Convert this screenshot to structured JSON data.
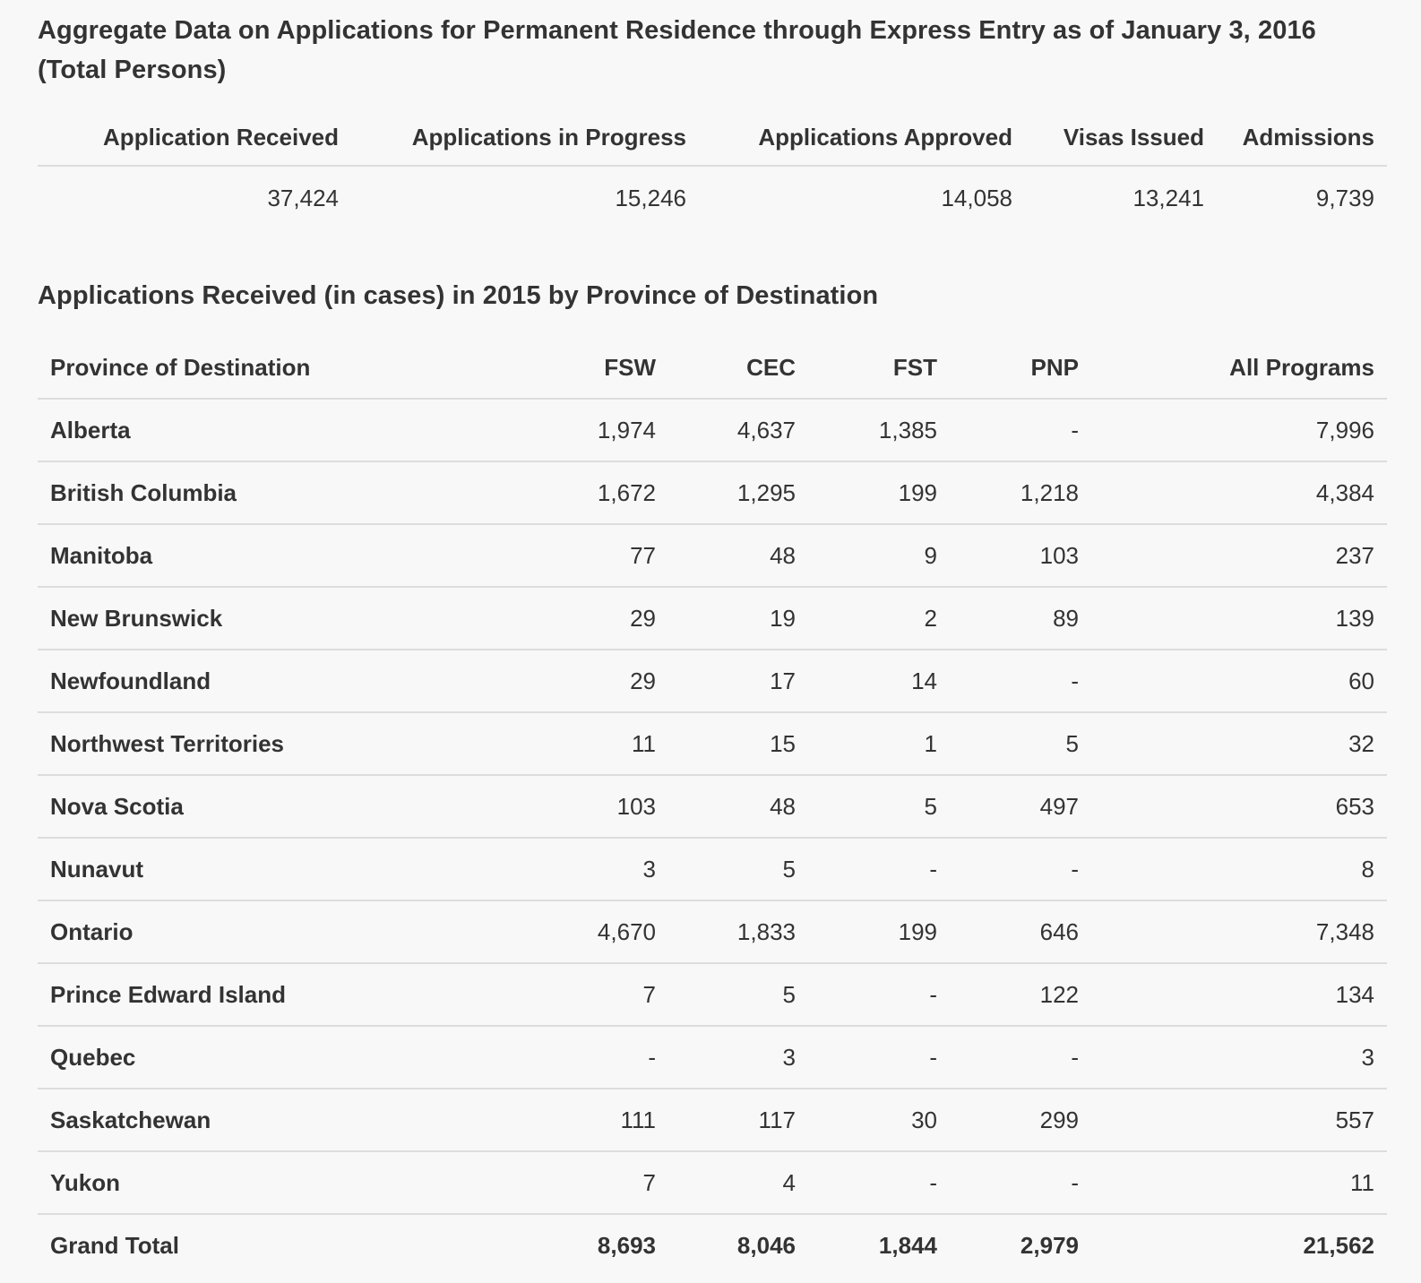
{
  "aggregate": {
    "title": "Aggregate Data on Applications for Permanent Residence through Express Entry as of January 3, 2016 (Total Persons)",
    "headers": [
      "Application Received",
      "Applications in Progress",
      "Applications Approved",
      "Visas Issued",
      "Admissions"
    ],
    "values": [
      "37,424",
      "15,246",
      "14,058",
      "13,241",
      "9,739"
    ]
  },
  "province": {
    "title": "Applications Received (in cases) in 2015 by Province of Destination",
    "headers": [
      "Province of Destination",
      "FSW",
      "CEC",
      "FST",
      "PNP",
      "All Programs"
    ],
    "rows": [
      [
        "Alberta",
        "1,974",
        "4,637",
        "1,385",
        "-",
        "7,996"
      ],
      [
        "British Columbia",
        "1,672",
        "1,295",
        "199",
        "1,218",
        "4,384"
      ],
      [
        "Manitoba",
        "77",
        "48",
        "9",
        "103",
        "237"
      ],
      [
        "New Brunswick",
        "29",
        "19",
        "2",
        "89",
        "139"
      ],
      [
        "Newfoundland",
        "29",
        "17",
        "14",
        "-",
        "60"
      ],
      [
        "Northwest Territories",
        "11",
        "15",
        "1",
        "5",
        "32"
      ],
      [
        "Nova Scotia",
        "103",
        "48",
        "5",
        "497",
        "653"
      ],
      [
        "Nunavut",
        "3",
        "5",
        "-",
        "-",
        "8"
      ],
      [
        "Ontario",
        "4,670",
        "1,833",
        "199",
        "646",
        "7,348"
      ],
      [
        "Prince Edward Island",
        "7",
        "5",
        "-",
        "122",
        "134"
      ],
      [
        "Quebec",
        "-",
        "3",
        "-",
        "-",
        "3"
      ],
      [
        "Saskatchewan",
        "111",
        "117",
        "30",
        "299",
        "557"
      ],
      [
        "Yukon",
        "7",
        "4",
        "-",
        "-",
        "11"
      ]
    ],
    "total": [
      "Grand Total",
      "8,693",
      "8,046",
      "1,844",
      "2,979",
      "21,562"
    ]
  }
}
